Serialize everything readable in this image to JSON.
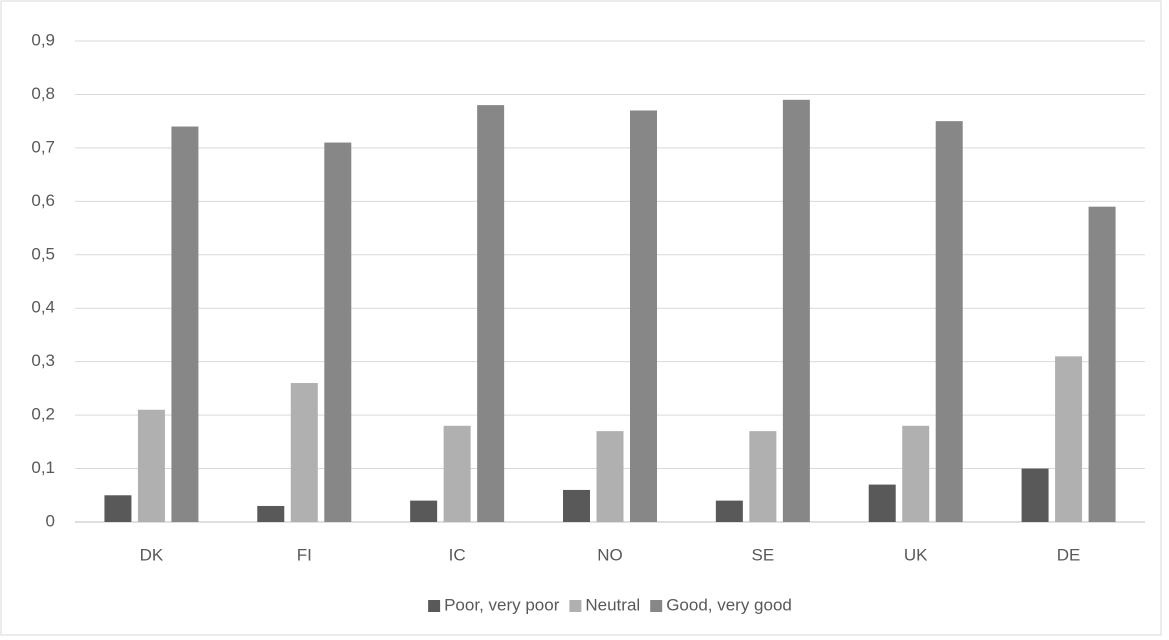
{
  "chart_data": {
    "type": "bar",
    "categories": [
      "DK",
      "FI",
      "IC",
      "NO",
      "SE",
      "UK",
      "DE"
    ],
    "series": [
      {
        "name": "Poor, very poor",
        "color": "#595959",
        "values": [
          0.05,
          0.03,
          0.04,
          0.06,
          0.04,
          0.07,
          0.1
        ]
      },
      {
        "name": "Neutral",
        "color": "#b0b0b0",
        "values": [
          0.21,
          0.26,
          0.18,
          0.17,
          0.17,
          0.18,
          0.31
        ]
      },
      {
        "name": "Good, very good",
        "color": "#878787",
        "values": [
          0.74,
          0.71,
          0.78,
          0.77,
          0.79,
          0.75,
          0.59
        ]
      }
    ],
    "ylim": [
      0,
      0.9
    ],
    "yticks": [
      0,
      {
        "value": 0.1,
        "label": "0,1"
      },
      {
        "value": 0.2,
        "label": "0,2"
      },
      {
        "value": 0.3,
        "label": "0,3"
      },
      {
        "value": 0.4,
        "label": "0,4"
      },
      {
        "value": 0.5,
        "label": "0,5"
      },
      {
        "value": 0.6,
        "label": "0,6"
      },
      {
        "value": 0.7,
        "label": "0,7"
      },
      {
        "value": 0.8,
        "label": "0,8"
      },
      {
        "value": 0.9,
        "label": "0,9"
      }
    ],
    "grid": true,
    "legend": "bottom"
  }
}
